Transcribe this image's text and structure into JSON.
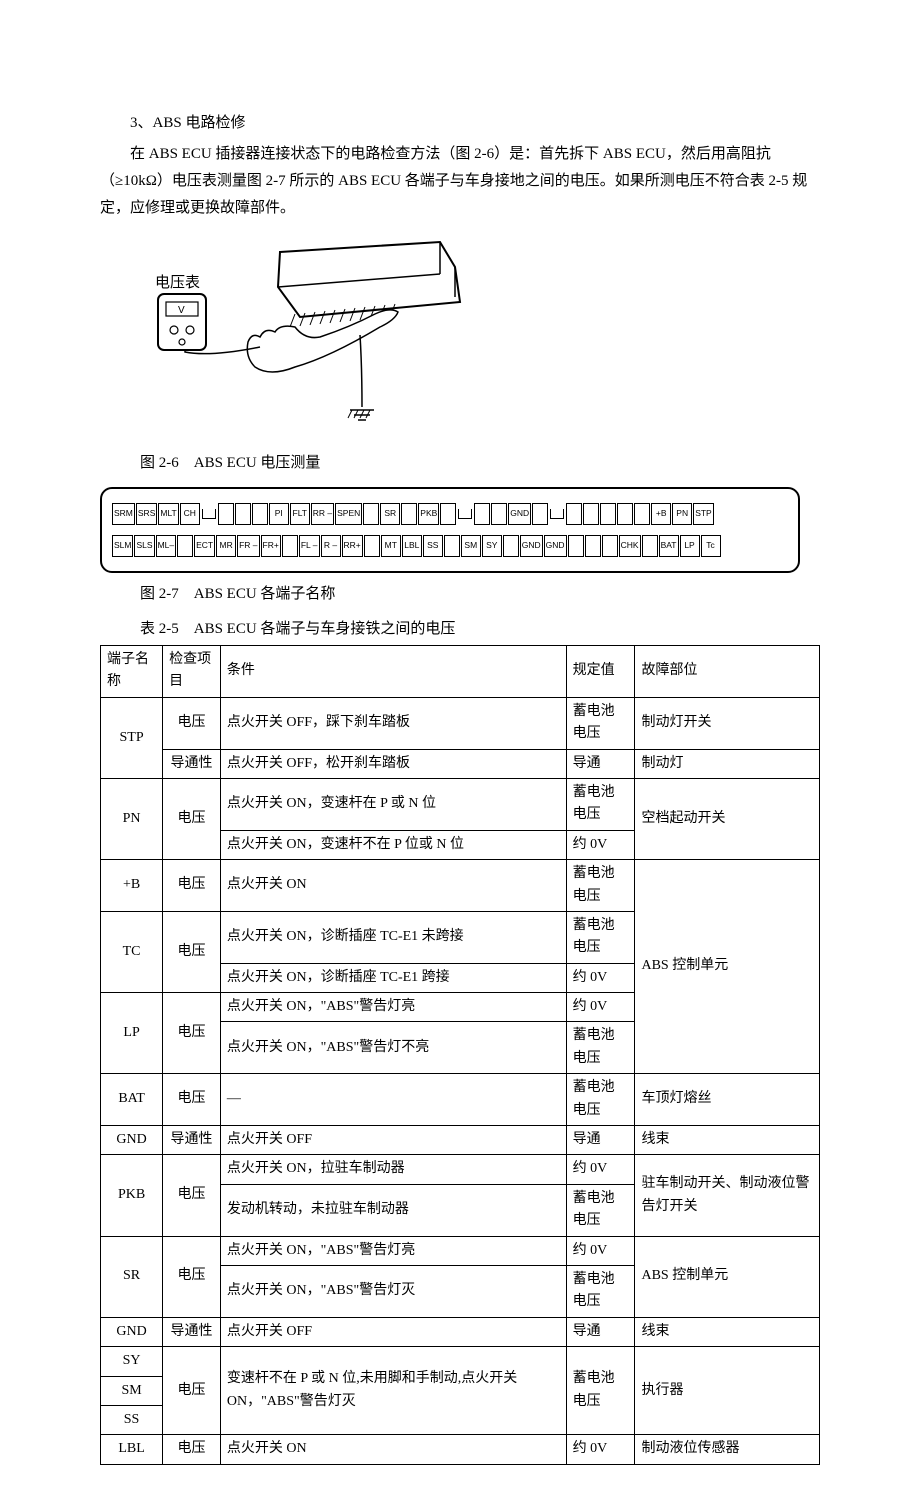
{
  "section": {
    "number": "3、",
    "title": "ABS 电路检修"
  },
  "paragraphs": {
    "p1": "在 ABS ECU 插接器连接状态下的电路检查方法（图 2-6）是：首先拆下 ABS ECU，然后用高阻抗（≥10kΩ）电压表测量图 2-7 所示的 ABS ECU 各端子与车身接地之间的电压。如果所测电压不符合表 2-5 规定，应修理或更换故障部件。"
  },
  "figures": {
    "fig26": {
      "caption": "图 2-6　ABS ECU 电压测量",
      "voltmeter_label": "电压表",
      "meter_letter": "V"
    },
    "fig27": {
      "caption": "图 2-7　ABS ECU 各端子名称"
    }
  },
  "connector": {
    "row1": [
      "SRM",
      "SRS",
      "MLT",
      "CH",
      "",
      "",
      "",
      "PI",
      "FLT",
      "RR –",
      "SPEN",
      "",
      "SR",
      "",
      "PKB",
      "",
      "",
      "",
      "GND",
      "",
      "",
      "",
      "",
      "",
      "",
      "+B",
      "PN",
      "STP"
    ],
    "row2": [
      "SLM",
      "SLS",
      "ML–",
      "",
      "ECT",
      "MR",
      "FR –",
      "FR+",
      "",
      "FL –",
      "R –",
      "RR+",
      "",
      "MT",
      "LBL",
      "SS",
      "",
      "SM",
      "SY",
      "",
      "GND",
      "GND",
      "",
      "",
      "",
      "CHK",
      "",
      "BAT",
      "LP",
      "Tc"
    ],
    "notch_positions_r1": [
      4,
      16,
      20
    ],
    "notch_positions_r2": []
  },
  "table": {
    "caption": "表 2-5　ABS ECU 各端子与车身接铁之间的电压",
    "headers": {
      "terminal": "端子名称",
      "check_item": "检查项目",
      "condition": "条件",
      "spec_value": "规定值",
      "fault_part": "故障部位"
    },
    "rows": [
      {
        "t": "STP",
        "rs": 2,
        "ci": "电压",
        "cond": "点火开关 OFF，踩下刹车踏板",
        "sv": "蓄电池电压",
        "fp": "制动灯开关"
      },
      {
        "ci": "导通性",
        "cond": "点火开关 OFF，松开刹车踏板",
        "sv": "导通",
        "fp": "制动灯"
      },
      {
        "t": "PN",
        "rs": 2,
        "ci": "电压",
        "cirs": 2,
        "cond": "点火开关 ON，变速杆在 P 或 N 位",
        "sv": "蓄电池电压",
        "fp": "空档起动开关",
        "fprs": 2
      },
      {
        "cond": "点火开关 ON，变速杆不在 P 位或 N 位",
        "sv": "约 0V"
      },
      {
        "t": "+B",
        "ci": "电压",
        "cond": "点火开关 ON",
        "sv": "蓄电池电压",
        "fp": "ABS 控制单元",
        "fprs": 5,
        "blank_sv": false
      },
      {
        "t": "TC",
        "rs": 2,
        "ci": "电压",
        "cirs": 2,
        "cond": "点火开关 ON，诊断插座 TC-E1 未跨接",
        "sv": "蓄电池电压"
      },
      {
        "cond": "点火开关 ON，诊断插座 TC-E1 跨接",
        "sv": "约 0V"
      },
      {
        "t": "LP",
        "rs": 2,
        "ci": "电压",
        "cirs": 2,
        "cond": "点火开关 ON，\"ABS\"警告灯亮",
        "sv": "约 0V"
      },
      {
        "cond": "点火开关 ON，\"ABS\"警告灯不亮",
        "sv": "蓄电池电压"
      },
      {
        "t": "BAT",
        "ci": "电压",
        "cond": "—",
        "sv": "蓄电池电压",
        "fp": "车顶灯熔丝"
      },
      {
        "t": "GND",
        "ci": "导通性",
        "cond": "点火开关 OFF",
        "sv": "导通",
        "fp": "线束"
      },
      {
        "t": "PKB",
        "rs": 2,
        "ci": "电压",
        "cirs": 2,
        "cond": "点火开关 ON，拉驻车制动器",
        "sv": "约 0V",
        "fp": "驻车制动开关、制动液位警告灯开关",
        "fprs": 2
      },
      {
        "cond": "发动机转动，未拉驻车制动器",
        "sv": "蓄电池电压"
      },
      {
        "t": "SR",
        "rs": 2,
        "ci": "电压",
        "cirs": 2,
        "cond": "点火开关 ON，\"ABS\"警告灯亮",
        "sv": "约 0V",
        "fp": "ABS 控制单元",
        "fprs": 2
      },
      {
        "cond": "点火开关 ON，\"ABS\"警告灯灭",
        "sv": "蓄电池电压"
      },
      {
        "t": "GND",
        "ci": "导通性",
        "cond": "点火开关 OFF",
        "sv": "导通",
        "fp": "线束"
      },
      {
        "t": "SY",
        "ci": "电压",
        "cirs": 3,
        "cond": "变速杆不在 P 或 N 位,未用脚和手制动,点火开关 ON，\"ABS\"警告灯灭",
        "condrs": 3,
        "sv": "蓄电池电压",
        "svrs": 3,
        "fp": "执行器",
        "fprs": 3
      },
      {
        "t": "SM"
      },
      {
        "t": "SS"
      },
      {
        "t": "LBL",
        "ci": "电压",
        "cond": "点火开关 ON",
        "sv": "约 0V",
        "fp": "制动液位传感器"
      }
    ]
  }
}
